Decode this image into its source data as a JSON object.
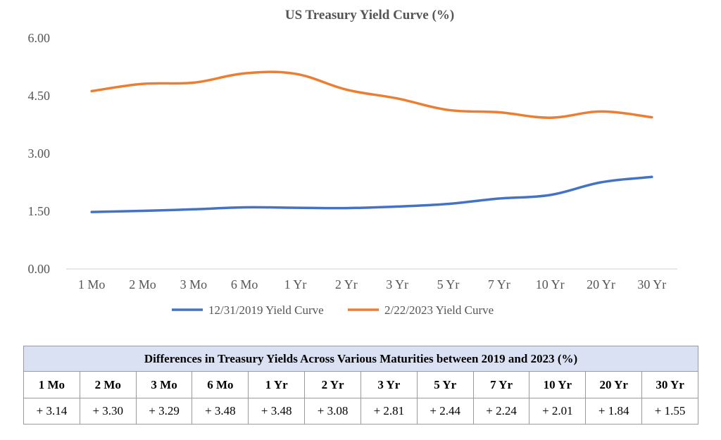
{
  "chart_data": {
    "type": "line",
    "title": "US Treasury Yield Curve (%)",
    "xlabel": "",
    "ylabel": "",
    "categories": [
      "1 Mo",
      "2 Mo",
      "3 Mo",
      "6 Mo",
      "1 Yr",
      "2 Yr",
      "3 Yr",
      "5 Yr",
      "7 Yr",
      "10 Yr",
      "20 Yr",
      "30 Yr"
    ],
    "y_ticks": [
      "0.00",
      "1.50",
      "3.00",
      "4.50",
      "6.00"
    ],
    "ylim": [
      0,
      6
    ],
    "grid": false,
    "legend_position": "bottom",
    "series": [
      {
        "name": "12/31/2019 Yield Curve",
        "color": "#4472c4",
        "values": [
          1.48,
          1.51,
          1.55,
          1.6,
          1.59,
          1.58,
          1.62,
          1.69,
          1.83,
          1.92,
          2.25,
          2.39
        ]
      },
      {
        "name": "2/22/2023 Yield Curve",
        "color": "#ed7d31",
        "values": [
          4.62,
          4.81,
          4.84,
          5.08,
          5.07,
          4.66,
          4.43,
          4.13,
          4.07,
          3.93,
          4.09,
          3.94
        ]
      }
    ]
  },
  "table": {
    "caption": "Differences in Treasury Yields Across Various Maturities between 2019 and 2023 (%)",
    "headers": [
      "1 Mo",
      "2 Mo",
      "3 Mo",
      "6 Mo",
      "1 Yr",
      "2 Yr",
      "3 Yr",
      "5 Yr",
      "7 Yr",
      "10 Yr",
      "20 Yr",
      "30 Yr"
    ],
    "values": [
      "+ 3.14",
      "+ 3.30",
      "+ 3.29",
      "+ 3.48",
      "+ 3.48",
      "+ 3.08",
      "+ 2.81",
      "+ 2.44",
      "+ 2.24",
      "+ 2.01",
      "+ 1.84",
      "+ 1.55"
    ],
    "caption_bg": "#d9e1f2"
  }
}
